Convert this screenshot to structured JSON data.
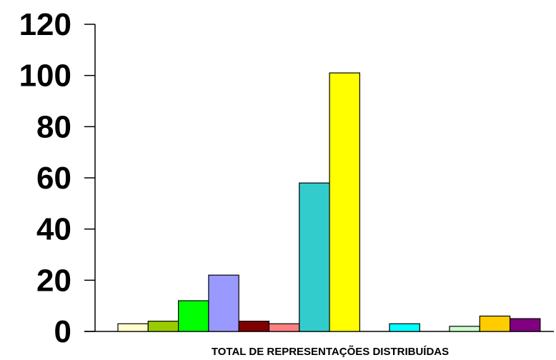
{
  "chart_data": {
    "type": "bar",
    "xlabel": "TOTAL DE REPRESENTAÇÕES DISTRIBUÍDAS",
    "ylabel": "",
    "ylim": [
      0,
      120
    ],
    "yticks": [
      0,
      20,
      40,
      60,
      80,
      100,
      120
    ],
    "grid": false,
    "legend": "none",
    "groups": [
      {
        "bars": [
          {
            "value": 3,
            "color": "#FFFFCC"
          },
          {
            "value": 4,
            "color": "#99CC00"
          },
          {
            "value": 12,
            "color": "#00FF00"
          },
          {
            "value": 22,
            "color": "#9999FF"
          },
          {
            "value": 4,
            "color": "#800000"
          },
          {
            "value": 3,
            "color": "#FF8080"
          },
          {
            "value": 58,
            "color": "#33CCCC"
          },
          {
            "value": 101,
            "color": "#FFFF00"
          }
        ]
      },
      {
        "bars": [
          {
            "value": 3,
            "color": "#00FFFF"
          }
        ]
      },
      {
        "bars": [
          {
            "value": 2,
            "color": "#CCFFCC"
          },
          {
            "value": 6,
            "color": "#FFCC00"
          },
          {
            "value": 5,
            "color": "#800080"
          }
        ]
      }
    ]
  }
}
